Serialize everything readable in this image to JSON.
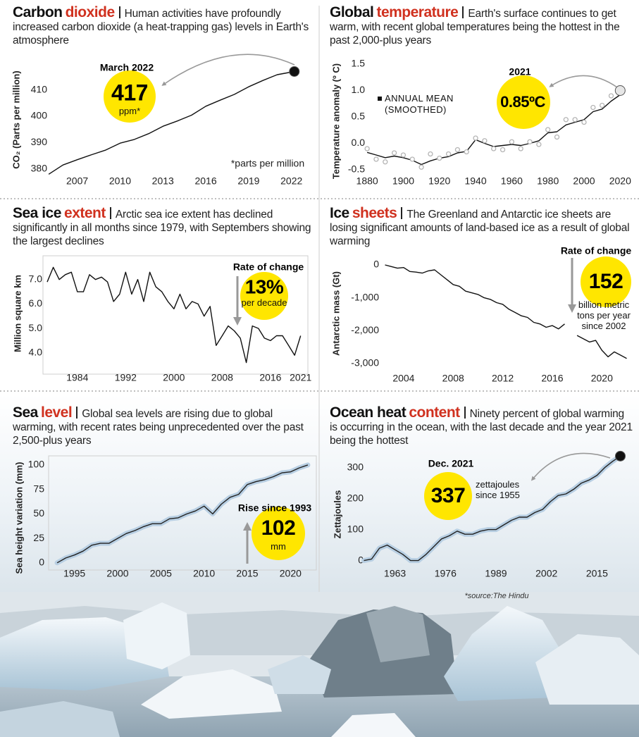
{
  "source": "*source:The Hindu",
  "chart_data": [
    {
      "type": "line",
      "title": "Carbon",
      "title_accent": "dioxide",
      "subtitle": "Human activities have profoundly increased carbon dioxide (a heat-trapping gas) levels in Earth's atmosphere",
      "ylabel": "CO₂ (Parts per million)",
      "x": [
        2005,
        2006,
        2007,
        2008,
        2009,
        2010,
        2011,
        2012,
        2013,
        2014,
        2015,
        2016,
        2017,
        2018,
        2019,
        2020,
        2021,
        2022.2
      ],
      "series": [
        {
          "color": "#111",
          "end_marker": "#111",
          "values": [
            378,
            381.5,
            383.5,
            385.4,
            387.2,
            389.8,
            391.2,
            393.4,
            396.2,
            398.2,
            400.4,
            403.8,
            406.1,
            408.3,
            411.2,
            413.6,
            415.8,
            417
          ]
        }
      ],
      "xlim": [
        2004.8,
        2023
      ],
      "ylim": [
        377,
        419
      ],
      "xticks": [
        2007,
        2010,
        2013,
        2016,
        2019,
        2022
      ],
      "yticks": [
        380,
        390,
        400,
        410
      ],
      "callout": {
        "label": "March 2022",
        "text": "417",
        "sub": "ppm*"
      },
      "note": "*parts per million"
    },
    {
      "type": "line",
      "title": "Global",
      "title_accent": "temperature",
      "subtitle": "Earth's surface continues to get warm, with recent global temperatures being the hottest in the past 2,000-plus years",
      "ylabel": "Temperature anomaly (º C)",
      "x": [
        1880,
        1885,
        1890,
        1895,
        1900,
        1905,
        1910,
        1915,
        1920,
        1925,
        1930,
        1935,
        1940,
        1945,
        1950,
        1955,
        1960,
        1965,
        1970,
        1975,
        1980,
        1985,
        1990,
        1995,
        2000,
        2005,
        2010,
        2015,
        2020
      ],
      "series": [
        {
          "name": "ANNUAL MEAN (SMOOTHED)",
          "color": "#111",
          "values": [
            -0.17,
            -0.22,
            -0.27,
            -0.24,
            -0.27,
            -0.32,
            -0.4,
            -0.33,
            -0.28,
            -0.25,
            -0.18,
            -0.15,
            0.07,
            0,
            -0.06,
            -0.04,
            -0.02,
            -0.04,
            0,
            0.05,
            0.2,
            0.22,
            0.35,
            0.4,
            0.45,
            0.6,
            0.65,
            0.8,
            0.92
          ]
        },
        {
          "color": "#b5b5b5",
          "style": "dots",
          "end_marker": "#e6e6e6",
          "values": [
            -0.1,
            -0.3,
            -0.35,
            -0.18,
            -0.22,
            -0.3,
            -0.45,
            -0.2,
            -0.28,
            -0.2,
            -0.12,
            -0.16,
            0.1,
            0.05,
            -0.1,
            -0.12,
            0.03,
            -0.1,
            0.03,
            -0.02,
            0.26,
            0.12,
            0.45,
            0.45,
            0.4,
            0.68,
            0.72,
            0.9,
            1
          ]
        }
      ],
      "xlim": [
        1878,
        2023
      ],
      "ylim": [
        -0.5,
        1.5
      ],
      "xticks": [
        1880,
        1900,
        1920,
        1940,
        1960,
        1980,
        2000,
        2020
      ],
      "yticks": [
        -0.5,
        {
          "value": 0,
          "label": "0.0"
        },
        0.5,
        {
          "value": 1,
          "label": "1.0"
        },
        1.5
      ],
      "callout": {
        "label": "2021",
        "text": "0.85ºC"
      }
    },
    {
      "type": "line",
      "title": "Sea ice",
      "title_accent": "extent",
      "subtitle": "Arctic sea ice extent has declined significantly in all months since 1979, with Septembers showing the largest declines",
      "ylabel": "Million square km",
      "x": [
        1979,
        1980,
        1981,
        1982,
        1983,
        1984,
        1985,
        1986,
        1987,
        1988,
        1989,
        1990,
        1991,
        1992,
        1993,
        1994,
        1995,
        1996,
        1997,
        1998,
        1999,
        2000,
        2001,
        2002,
        2003,
        2004,
        2005,
        2006,
        2007,
        2008,
        2009,
        2010,
        2011,
        2012,
        2013,
        2014,
        2015,
        2016,
        2017,
        2018,
        2019,
        2020,
        2021
      ],
      "series": [
        {
          "color": "#111",
          "values": [
            6.9,
            7.5,
            7.0,
            7.2,
            7.3,
            6.5,
            6.5,
            7.2,
            7.0,
            7.1,
            6.9,
            6.1,
            6.4,
            7.3,
            6.4,
            7.0,
            6.1,
            7.3,
            6.7,
            6.5,
            6.1,
            5.8,
            6.4,
            5.8,
            6.1,
            6.0,
            5.5,
            5.9,
            4.3,
            4.7,
            5.1,
            4.9,
            4.6,
            3.6,
            5.1,
            5.0,
            4.6,
            4.5,
            4.7,
            4.7,
            4.3,
            3.9,
            4.7
          ]
        }
      ],
      "xlim": [
        1979,
        2021.5
      ],
      "ylim": [
        3.3,
        7.8
      ],
      "xticks": [
        1984,
        1992,
        2000,
        2008,
        2016,
        2021
      ],
      "yticks": [
        {
          "value": 4,
          "label": "4.0"
        },
        {
          "value": 5,
          "label": "5.0"
        },
        {
          "value": 6,
          "label": "6.0"
        },
        {
          "value": 7,
          "label": "7.0"
        }
      ],
      "frame": true,
      "callout": {
        "label": "Rate of change",
        "text": "13%",
        "sub": "per decade"
      }
    },
    {
      "type": "line",
      "title": "Ice",
      "title_accent": "sheets",
      "subtitle": "The Greenland and Antarctic ice sheets are losing significant amounts of land-based ice as a result of global warming",
      "ylabel": "Antarctic mass (Gt)",
      "x": [
        2002.5,
        2003,
        2003.5,
        2004,
        2004.5,
        2005,
        2005.5,
        2006,
        2006.5,
        2007,
        2007.5,
        2008,
        2008.5,
        2009,
        2009.5,
        2010,
        2010.5,
        2011,
        2011.5,
        2012,
        2012.5,
        2013,
        2013.5,
        2014,
        2014.5,
        2015,
        2015.5,
        2016,
        2016.5,
        2017,
        2017.5,
        2018,
        2018.5,
        2019,
        2019.5,
        2020,
        2020.5,
        2021,
        2021.5,
        2022
      ],
      "series": [
        {
          "color": "#111",
          "values": [
            0,
            -50,
            -100,
            -80,
            -200,
            -220,
            -250,
            -180,
            -150,
            -300,
            -450,
            -600,
            -650,
            -800,
            -850,
            -900,
            -1000,
            -1050,
            -1150,
            -1200,
            -1350,
            -1450,
            -1550,
            -1600,
            -1750,
            -1800,
            -1900,
            -1850,
            -1950,
            -1800,
            null,
            -2150,
            -2250,
            -2350,
            -2300,
            -2600,
            -2800,
            -2650,
            -2750,
            -2850
          ]
        }
      ],
      "xlim": [
        2002.3,
        2022.2
      ],
      "ylim": [
        -3200,
        150
      ],
      "xticks": [
        2004,
        2008,
        2012,
        2016,
        2020
      ],
      "yticks": [
        0,
        {
          "value": -1000,
          "label": "-1,000"
        },
        {
          "value": -2000,
          "label": "-2,000"
        },
        {
          "value": -3000,
          "label": "-3,000"
        }
      ],
      "callout": {
        "label": "Rate of change",
        "text": "152",
        "sub": "billion metric tons per year since 2002"
      }
    },
    {
      "type": "line",
      "title": "Sea",
      "title_accent": "level",
      "subtitle": "Global sea levels are rising due to global warming, with recent rates being unprecedented over the past 2,500-plus years",
      "ylabel": "Sea height variation (mm)",
      "x": [
        1993,
        1994,
        1995,
        1996,
        1997,
        1998,
        1999,
        2000,
        2001,
        2002,
        2003,
        2004,
        2005,
        2006,
        2007,
        2008,
        2009,
        2010,
        2011,
        2012,
        2013,
        2014,
        2015,
        2016,
        2017,
        2018,
        2019,
        2020,
        2021,
        2022
      ],
      "series": [
        {
          "color": "#222",
          "halo_color": "#b8cfe3",
          "values": [
            0,
            5,
            8,
            12,
            18,
            20,
            20,
            25,
            30,
            33,
            37,
            40,
            40,
            45,
            46,
            50,
            53,
            58,
            50,
            60,
            67,
            70,
            80,
            83,
            85,
            88,
            92,
            93,
            97,
            100
          ]
        }
      ],
      "xlim": [
        1992.5,
        2022.5
      ],
      "ylim": [
        -3,
        105
      ],
      "xticks": [
        1995,
        2000,
        2005,
        2010,
        2015,
        2020
      ],
      "yticks": [
        0,
        25,
        50,
        75,
        100
      ],
      "frame": true,
      "callout": {
        "label": "Rise since 1993",
        "text": "102",
        "sub": "mm"
      }
    },
    {
      "type": "line",
      "title": "Ocean heat",
      "title_accent": "content",
      "subtitle": "Ninety percent of global warming is occurring in the ocean, with the last decade and the year 2021 being the hottest",
      "ylabel": "Zettajoules",
      "x": [
        1955,
        1957,
        1959,
        1961,
        1963,
        1965,
        1967,
        1969,
        1971,
        1973,
        1975,
        1977,
        1979,
        1981,
        1983,
        1985,
        1987,
        1989,
        1991,
        1993,
        1995,
        1997,
        1999,
        2001,
        2003,
        2005,
        2007,
        2009,
        2011,
        2013,
        2015,
        2017,
        2019,
        2021
      ],
      "series": [
        {
          "color": "#222",
          "halo_color": "#b8cfe3",
          "end_marker": "#111",
          "values": [
            0,
            5,
            40,
            50,
            35,
            20,
            0,
            0,
            20,
            45,
            70,
            80,
            95,
            85,
            85,
            95,
            100,
            100,
            115,
            130,
            140,
            140,
            155,
            165,
            190,
            210,
            215,
            230,
            250,
            260,
            275,
            300,
            320,
            337
          ]
        }
      ],
      "xlim": [
        1954,
        2022
      ],
      "ylim": [
        -10,
        340
      ],
      "xticks": [
        1963,
        1976,
        1989,
        2002,
        2015
      ],
      "yticks": [
        0,
        100,
        200,
        300
      ],
      "callout": {
        "label": "Dec. 2021",
        "text": "337",
        "sub": "zettajoules since 1955"
      }
    }
  ]
}
